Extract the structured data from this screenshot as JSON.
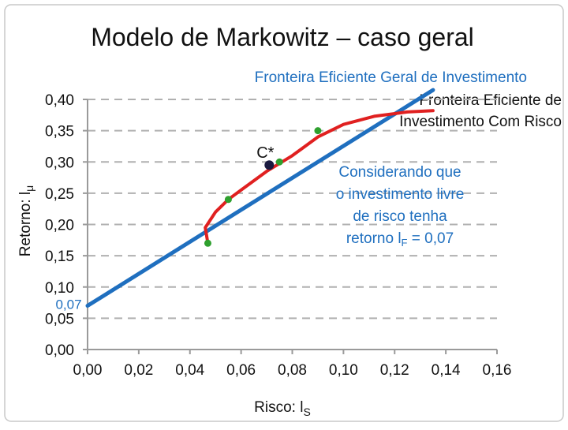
{
  "slide_title": "Modelo de Markowitz – caso geral",
  "chart_data": {
    "type": "line",
    "xlabel_main": "Risco: l",
    "xlabel_sub": "S",
    "ylabel_main": "Retorno: l",
    "ylabel_sub": "μ",
    "xlim": [
      0,
      0.16
    ],
    "ylim": [
      0,
      0.4
    ],
    "x_ticks": [
      {
        "value": 0.0,
        "label": "0,00"
      },
      {
        "value": 0.02,
        "label": "0,02"
      },
      {
        "value": 0.04,
        "label": "0,04"
      },
      {
        "value": 0.06,
        "label": "0,06"
      },
      {
        "value": 0.08,
        "label": "0,08"
      },
      {
        "value": 0.1,
        "label": "0,10"
      },
      {
        "value": 0.12,
        "label": "0,12"
      },
      {
        "value": 0.14,
        "label": "0,14"
      },
      {
        "value": 0.16,
        "label": "0,16"
      }
    ],
    "y_ticks": [
      {
        "value": 0.0,
        "label": "0,00"
      },
      {
        "value": 0.05,
        "label": "0,05"
      },
      {
        "value": 0.1,
        "label": "0,10"
      },
      {
        "value": 0.15,
        "label": "0,15"
      },
      {
        "value": 0.2,
        "label": "0,20"
      },
      {
        "value": 0.25,
        "label": "0,25"
      },
      {
        "value": 0.3,
        "label": "0,30"
      },
      {
        "value": 0.35,
        "label": "0,35"
      },
      {
        "value": 0.4,
        "label": "0,40"
      }
    ],
    "grid": "horizontal-dashed",
    "series": [
      {
        "name": "Fronteira Eficiente Geral de Investimento",
        "color": "#1f6fbf",
        "x": [
          0.0,
          0.135
        ],
        "y": [
          0.07,
          0.415
        ]
      },
      {
        "name": "Fronteira Eficiente de Investimento Com Risco",
        "color": "#e02020",
        "x": [
          0.047,
          0.046,
          0.05,
          0.055,
          0.06,
          0.07,
          0.08,
          0.09,
          0.1,
          0.112,
          0.125,
          0.135
        ],
        "y": [
          0.17,
          0.195,
          0.22,
          0.24,
          0.255,
          0.285,
          0.31,
          0.34,
          0.36,
          0.373,
          0.38,
          0.382
        ]
      }
    ],
    "points": [
      {
        "x": 0.047,
        "y": 0.17,
        "color": "#2ea02e"
      },
      {
        "x": 0.055,
        "y": 0.24,
        "color": "#2ea02e"
      },
      {
        "x": 0.075,
        "y": 0.3,
        "color": "#2ea02e"
      },
      {
        "x": 0.09,
        "y": 0.35,
        "color": "#2ea02e"
      }
    ],
    "tangent_point": {
      "x": 0.071,
      "y": 0.295,
      "label": "C*",
      "color": "#1a1a40"
    },
    "intercept_label": "0,07",
    "annotation_lines": [
      "Considerando que",
      "o investimento livre",
      "de risco tenha"
    ],
    "annotation_last": {
      "prefix": "retorno l",
      "sub": "F",
      "suffix": " = 0,07"
    },
    "annotation_color": "#1f6fbf"
  }
}
